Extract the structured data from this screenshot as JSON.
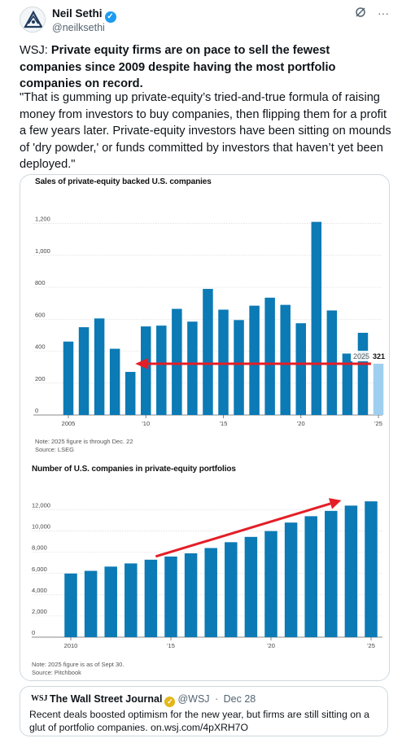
{
  "author": {
    "name": "Neil Sethi",
    "handle": "@neilksethi"
  },
  "icons": [
    "avatar",
    "verified-badge-icon",
    "grok-icon",
    "more-icon",
    "gold-verified-badge-icon"
  ],
  "tweet": {
    "prefix": "WSJ: ",
    "headline": "Private equity firms are on pace to sell the fewest companies since 2009 despite having the most portfolio companies on record.",
    "quote": "\"That is gumming up private-equity’s tried-and-true formula of raising money from investors to buy companies, then flipping them for a profit a few years later. Private-equity investors have been sitting on mounds of 'dry powder,' or funds committed by investors that haven’t yet been deployed.\""
  },
  "colors": {
    "bar": "#0b7ab5",
    "bar_highlight": "#9fcff0",
    "arrow": "#e41e26",
    "verified": "#1d9bf0"
  },
  "chart_data": [
    {
      "type": "bar",
      "title": "Sales of private-equity backed U.S. companies",
      "x": [
        2005,
        2006,
        2007,
        2008,
        2009,
        2010,
        2011,
        2012,
        2013,
        2014,
        2015,
        2016,
        2017,
        2018,
        2019,
        2020,
        2021,
        2022,
        2023,
        2024,
        2025
      ],
      "x_tick_labels": [
        "2005",
        "'10",
        "'15",
        "'20",
        "'25"
      ],
      "values": [
        460,
        550,
        605,
        415,
        270,
        555,
        560,
        665,
        585,
        790,
        660,
        595,
        685,
        735,
        690,
        575,
        1210,
        655,
        385,
        515,
        321
      ],
      "highlight": {
        "x": 2025,
        "label_year": "2025",
        "label_value": "321"
      },
      "ylim": [
        0,
        1300
      ],
      "y_ticks": [
        "0",
        "200",
        "400",
        "600",
        "800",
        "1,000",
        "1,200"
      ],
      "grid": true,
      "annotation": "red arrow pointing left from 2025 level to 2009 level",
      "note": "Note: 2025 figure is through Dec. 22",
      "source": "Source: LSEG"
    },
    {
      "type": "bar",
      "title": "Number of U.S. companies in private-equity portfolios",
      "x": [
        2010,
        2011,
        2012,
        2013,
        2014,
        2015,
        2016,
        2017,
        2018,
        2019,
        2020,
        2021,
        2022,
        2023,
        2024,
        2025
      ],
      "x_tick_labels": [
        "2010",
        "'15",
        "'20",
        "'25"
      ],
      "values": [
        6000,
        6250,
        6650,
        6950,
        7300,
        7600,
        7900,
        8400,
        8950,
        9450,
        10000,
        10800,
        11400,
        11900,
        12400,
        12800
      ],
      "ylim": [
        0,
        13500
      ],
      "y_ticks": [
        "0",
        "2,000",
        "4,000",
        "6,000",
        "8,000",
        "10,000",
        "12,000"
      ],
      "grid": true,
      "annotation": "red arrow pointing up-right from 2014 to 2024",
      "note": "Note: 2025 figure is as of Sept 30.",
      "source": "Source: Pitchbook"
    }
  ],
  "quoted_post": {
    "logo": "WSJ",
    "name": "The Wall Street Journal",
    "handle": "@WSJ",
    "date": "Dec 28",
    "text": "Recent deals boosted optimism for the new year, but firms are still sitting on a glut of portfolio companies. on.wsj.com/4pXRH7O"
  }
}
